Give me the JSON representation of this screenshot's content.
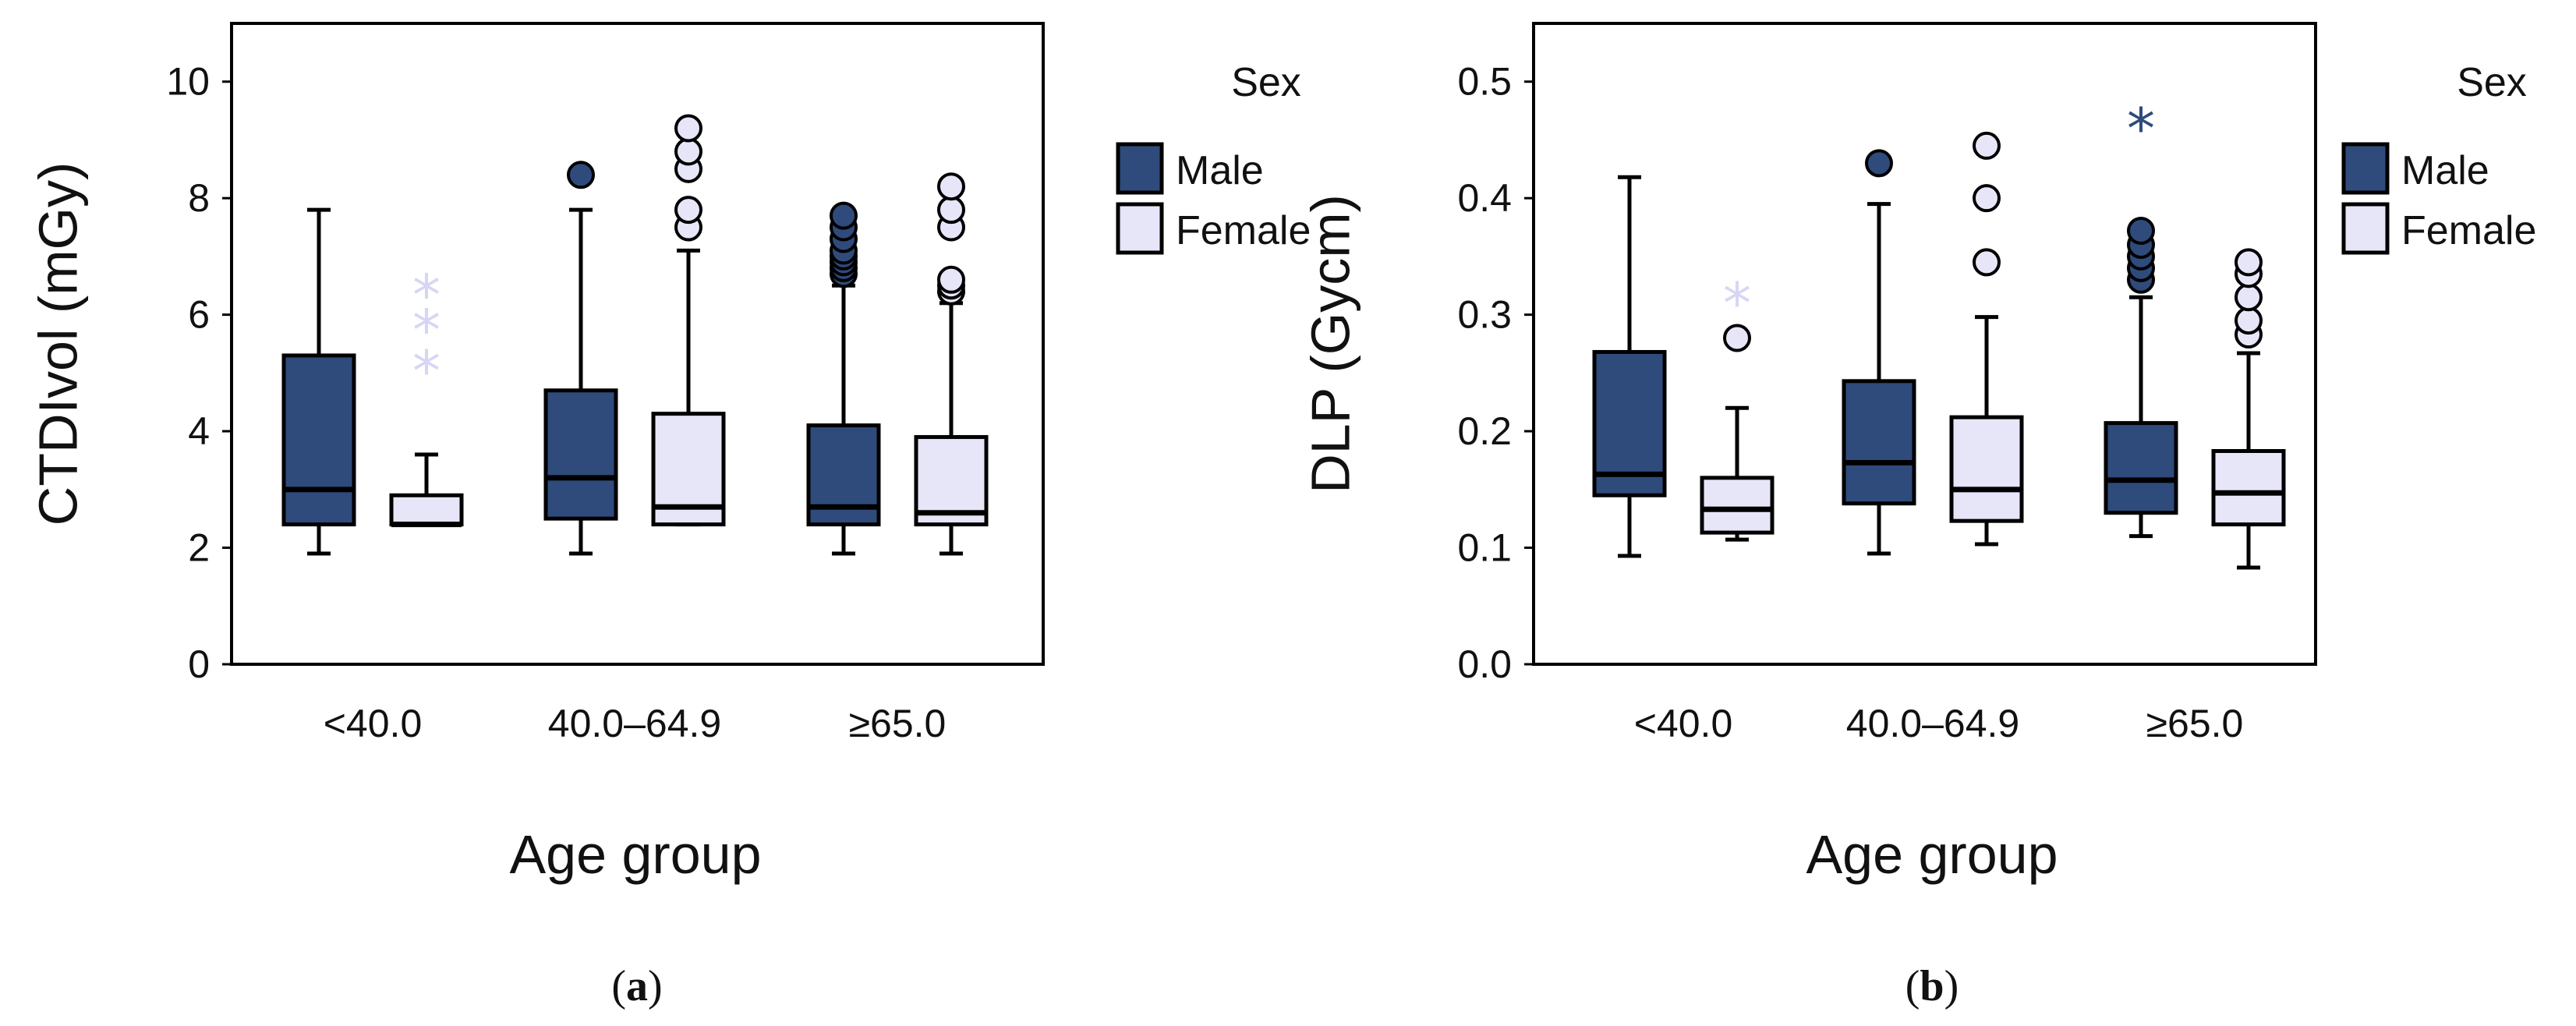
{
  "chart_data": [
    {
      "type": "box",
      "panel_label": "a",
      "ylabel": "CTDIvol (mGy)",
      "xlabel": "Age group",
      "ylim": [
        0,
        11
      ],
      "yticks": [
        0,
        2,
        4,
        6,
        8,
        10
      ],
      "categories": [
        "<40.0",
        "40.0–64.9",
        "≥65.0"
      ],
      "legend": {
        "title": "Sex",
        "entries": [
          "Male",
          "Female"
        ]
      },
      "colors": {
        "Male": "#2f4b7c",
        "Female": "#e6e6f8"
      },
      "series": [
        {
          "name": "Male",
          "boxes": [
            {
              "min": 1.9,
              "q1": 2.4,
              "median": 3.0,
              "q3": 5.3,
              "max": 7.8,
              "outliers": [],
              "extremes": []
            },
            {
              "min": 1.9,
              "q1": 2.5,
              "median": 3.2,
              "q3": 4.7,
              "max": 7.8,
              "outliers": [
                8.4
              ],
              "extremes": []
            },
            {
              "min": 1.9,
              "q1": 2.4,
              "median": 2.7,
              "q3": 4.1,
              "max": 6.5,
              "outliers": [
                6.7,
                6.8,
                6.9,
                7.0,
                7.1,
                7.3,
                7.5,
                7.7
              ],
              "extremes": []
            }
          ]
        },
        {
          "name": "Female",
          "boxes": [
            {
              "min": 2.4,
              "q1": 2.4,
              "median": 2.4,
              "q3": 2.9,
              "max": 3.6,
              "outliers": [],
              "extremes": [
                5.1,
                5.8,
                6.4
              ]
            },
            {
              "min": 2.4,
              "q1": 2.4,
              "median": 2.7,
              "q3": 4.3,
              "max": 7.1,
              "outliers": [
                7.5,
                7.8,
                8.5,
                8.8,
                9.2
              ],
              "extremes": []
            },
            {
              "min": 1.9,
              "q1": 2.4,
              "median": 2.6,
              "q3": 3.9,
              "max": 6.2,
              "outliers": [
                6.4,
                6.5,
                6.6,
                7.5,
                7.8,
                8.2
              ],
              "extremes": []
            }
          ]
        }
      ]
    },
    {
      "type": "box",
      "panel_label": "b",
      "ylabel": "DLP (Gycm)",
      "xlabel": "Age group",
      "ylim": [
        0,
        0.55
      ],
      "yticks": [
        0.0,
        0.1,
        0.2,
        0.3,
        0.4,
        0.5
      ],
      "categories": [
        "<40.0",
        "40.0–64.9",
        "≥65.0"
      ],
      "legend": {
        "title": "Sex",
        "entries": [
          "Male",
          "Female"
        ]
      },
      "colors": {
        "Male": "#2f4b7c",
        "Female": "#e6e6f8"
      },
      "series": [
        {
          "name": "Male",
          "boxes": [
            {
              "min": 0.093,
              "q1": 0.145,
              "median": 0.163,
              "q3": 0.268,
              "max": 0.418,
              "outliers": [],
              "extremes": []
            },
            {
              "min": 0.095,
              "q1": 0.138,
              "median": 0.173,
              "q3": 0.243,
              "max": 0.395,
              "outliers": [
                0.43
              ],
              "extremes": []
            },
            {
              "min": 0.11,
              "q1": 0.13,
              "median": 0.158,
              "q3": 0.207,
              "max": 0.315,
              "outliers": [
                0.33,
                0.34,
                0.35,
                0.36,
                0.372
              ],
              "extremes": [
                0.463
              ]
            }
          ]
        },
        {
          "name": "Female",
          "boxes": [
            {
              "min": 0.107,
              "q1": 0.113,
              "median": 0.133,
              "q3": 0.16,
              "max": 0.22,
              "outliers": [
                0.28
              ],
              "extremes": [
                0.313
              ]
            },
            {
              "min": 0.103,
              "q1": 0.123,
              "median": 0.15,
              "q3": 0.212,
              "max": 0.298,
              "outliers": [
                0.345,
                0.4,
                0.445
              ],
              "extremes": []
            },
            {
              "min": 0.083,
              "q1": 0.12,
              "median": 0.147,
              "q3": 0.183,
              "max": 0.267,
              "outliers": [
                0.283,
                0.295,
                0.315,
                0.335,
                0.345
              ],
              "extremes": []
            }
          ]
        }
      ]
    }
  ]
}
